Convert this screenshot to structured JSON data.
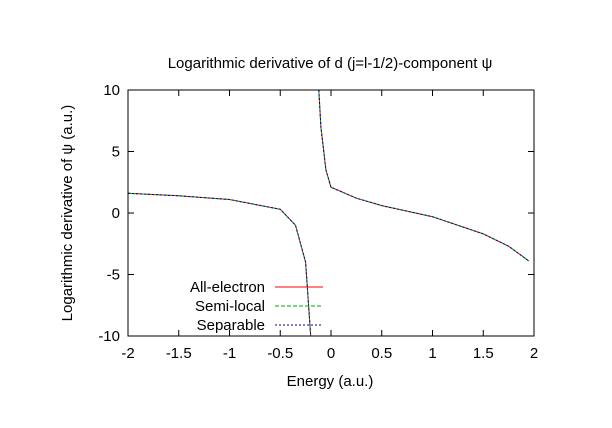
{
  "chart_data": {
    "type": "line",
    "title": "Logarithmic derivative of d (j=l-1/2)-component ψ",
    "xlabel": "Energy (a.u.)",
    "ylabel": "Logarithmic derivative of ψ (a.u.)",
    "xlim": [
      -2,
      2
    ],
    "ylim": [
      -10,
      10
    ],
    "x_ticks": [
      "-2",
      "-1.5",
      "-1",
      "-0.5",
      "0",
      "0.5",
      "1",
      "1.5",
      "2"
    ],
    "y_ticks": [
      "10",
      "5",
      "0",
      "-5",
      "-10"
    ],
    "grid": false,
    "legend_position": "bottom-left",
    "series": [
      {
        "name": "All-electron",
        "color": "#ff0000",
        "dash": "solid",
        "pole": -0.16,
        "points": [
          [
            -2,
            1.6
          ],
          [
            -1.5,
            1.4
          ],
          [
            -1,
            1.1
          ],
          [
            -0.5,
            0.3
          ],
          [
            -0.35,
            -1.0
          ],
          [
            -0.25,
            -4.0
          ],
          [
            -0.2,
            -10.0
          ],
          [
            -0.12,
            10.0
          ],
          [
            -0.1,
            7.0
          ],
          [
            -0.05,
            3.5
          ],
          [
            0,
            2.1
          ],
          [
            0.25,
            1.2
          ],
          [
            0.5,
            0.6
          ],
          [
            1,
            -0.3
          ],
          [
            1.5,
            -1.7
          ],
          [
            1.75,
            -2.7
          ],
          [
            1.95,
            -3.9
          ]
        ]
      },
      {
        "name": "Semi-local",
        "color": "#00aa00",
        "dash": "dashed",
        "pole": -0.16,
        "points": [
          [
            -2,
            1.6
          ],
          [
            -1.5,
            1.4
          ],
          [
            -1,
            1.1
          ],
          [
            -0.5,
            0.3
          ],
          [
            -0.35,
            -1.0
          ],
          [
            -0.25,
            -4.0
          ],
          [
            -0.2,
            -10.0
          ],
          [
            -0.12,
            10.0
          ],
          [
            -0.1,
            7.0
          ],
          [
            -0.05,
            3.5
          ],
          [
            0,
            2.1
          ],
          [
            0.25,
            1.2
          ],
          [
            0.5,
            0.6
          ],
          [
            1,
            -0.3
          ],
          [
            1.5,
            -1.7
          ],
          [
            1.75,
            -2.7
          ],
          [
            1.95,
            -3.9
          ]
        ]
      },
      {
        "name": "Separable",
        "color": "#0000aa",
        "dash": "dotted",
        "pole": -0.16,
        "points": [
          [
            -2,
            1.6
          ],
          [
            -1.5,
            1.4
          ],
          [
            -1,
            1.1
          ],
          [
            -0.5,
            0.3
          ],
          [
            -0.35,
            -1.0
          ],
          [
            -0.25,
            -4.0
          ],
          [
            -0.2,
            -10.0
          ],
          [
            -0.12,
            10.0
          ],
          [
            -0.1,
            7.0
          ],
          [
            -0.05,
            3.5
          ],
          [
            0,
            2.1
          ],
          [
            0.25,
            1.2
          ],
          [
            0.5,
            0.6
          ],
          [
            1,
            -0.3
          ],
          [
            1.5,
            -1.7
          ],
          [
            1.75,
            -2.7
          ],
          [
            1.95,
            -3.9
          ]
        ]
      }
    ]
  }
}
